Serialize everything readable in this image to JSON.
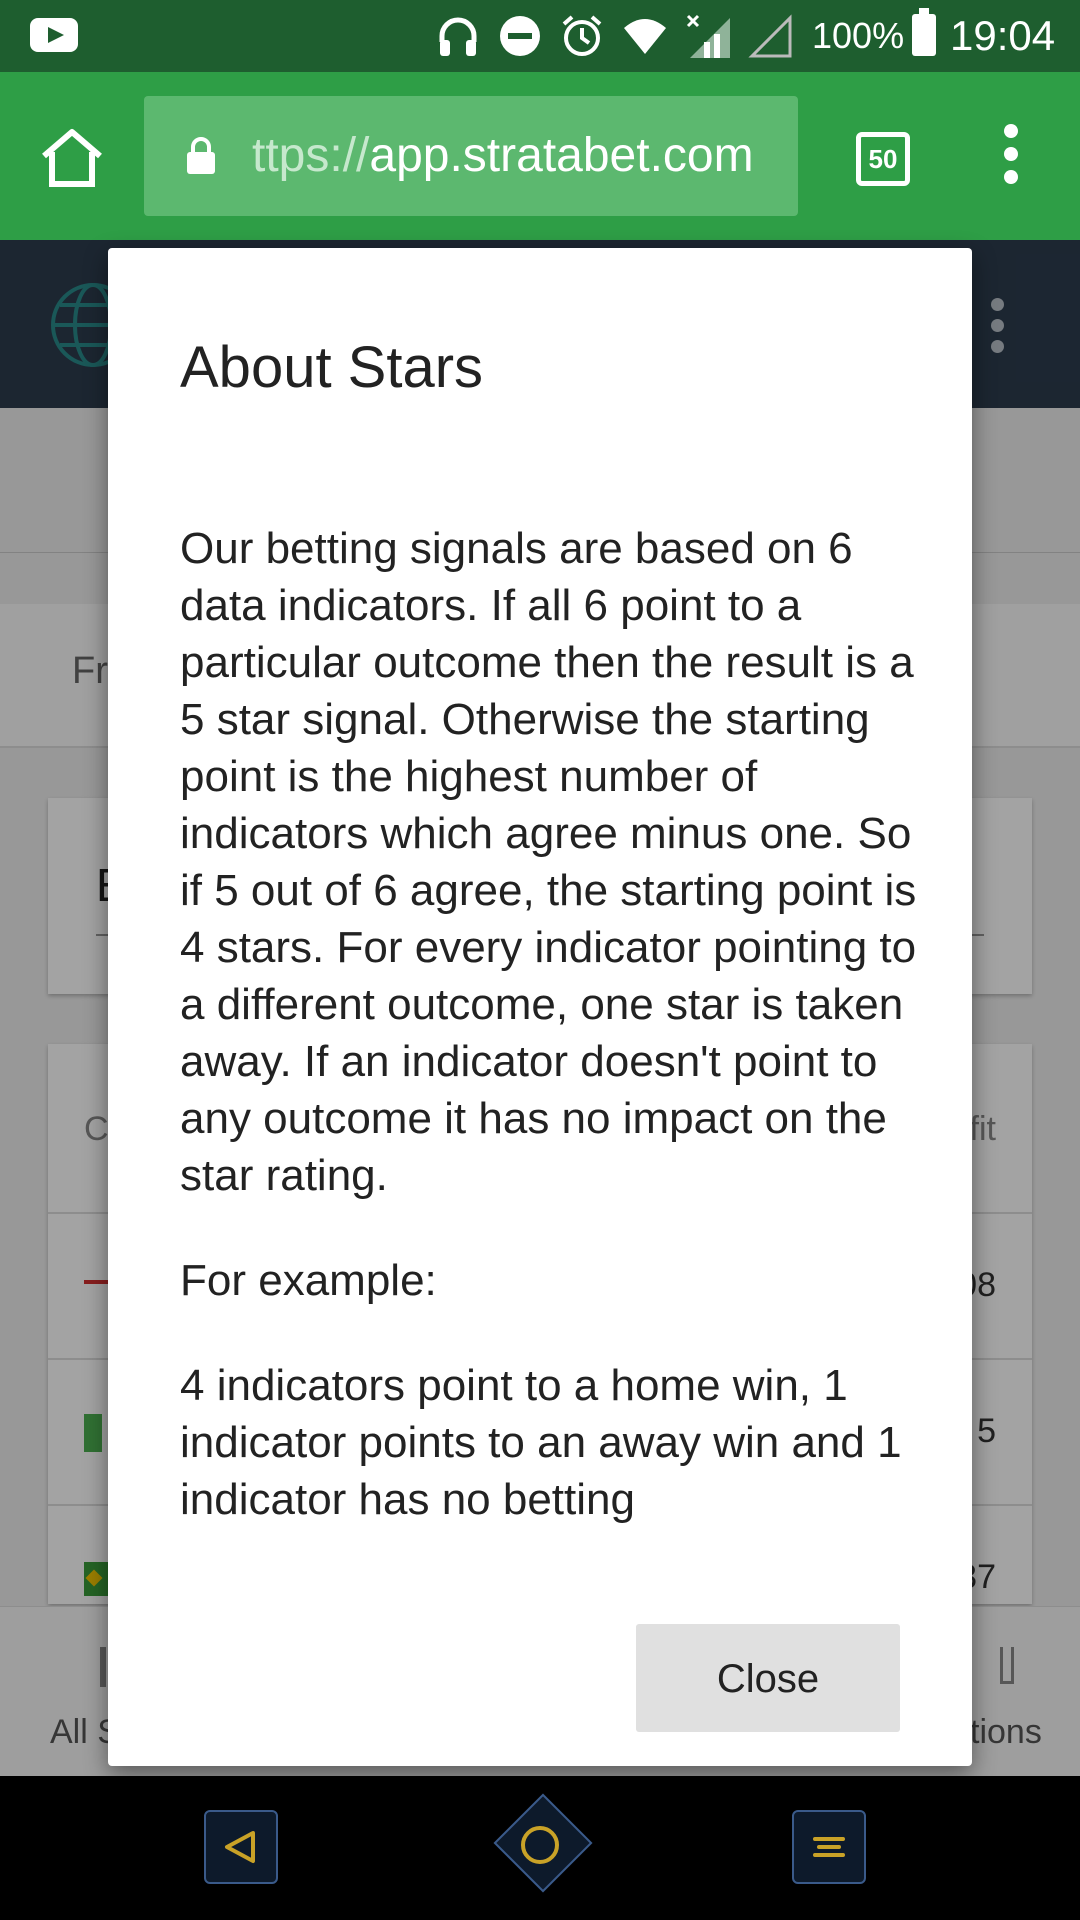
{
  "status_bar": {
    "battery_percent": "100%",
    "time": "19:04",
    "icons": [
      "youtube-icon",
      "headphones-icon",
      "do-not-disturb-icon",
      "alarm-icon",
      "wifi-icon",
      "signal-no-data-icon",
      "signal-empty-icon",
      "battery-icon"
    ]
  },
  "browser": {
    "url_dim": "ttps://",
    "url_main": "app.stratabet.com",
    "tab_count": "50",
    "icons": [
      "home-icon",
      "lock-icon",
      "tabs-icon",
      "overflow-menu-icon"
    ]
  },
  "background_page": {
    "fragment_fr": "Fr",
    "fragment_e": "E",
    "fragment_c": "C",
    "fragment_fit": "fit",
    "row_values": [
      "08",
      "5",
      "37"
    ],
    "bottom_nav_left": "All S",
    "bottom_nav_right": "tions"
  },
  "dialog": {
    "title": "About Stars",
    "paragraphs": [
      "Our betting signals are based on 6 data indicators. If all 6 point to a particular outcome then the result is a 5 star signal. Otherwise the starting point is the highest number of indicators which agree minus one. So if 5 out of 6 agree, the starting point is 4 stars. For every indicator pointing to a different outcome, one star is taken away. If an indicator doesn't point to any outcome it has no impact on the star rating.",
      "For example:",
      "4 indicators point to a home win, 1 indicator points to an away win and 1 indicator has no betting"
    ],
    "close_label": "Close"
  },
  "colors": {
    "status_bar": "#1e5e2f",
    "toolbar": "#2e9e46",
    "app_header": "#2c3c4e",
    "nav_accent": "#c9a227"
  }
}
